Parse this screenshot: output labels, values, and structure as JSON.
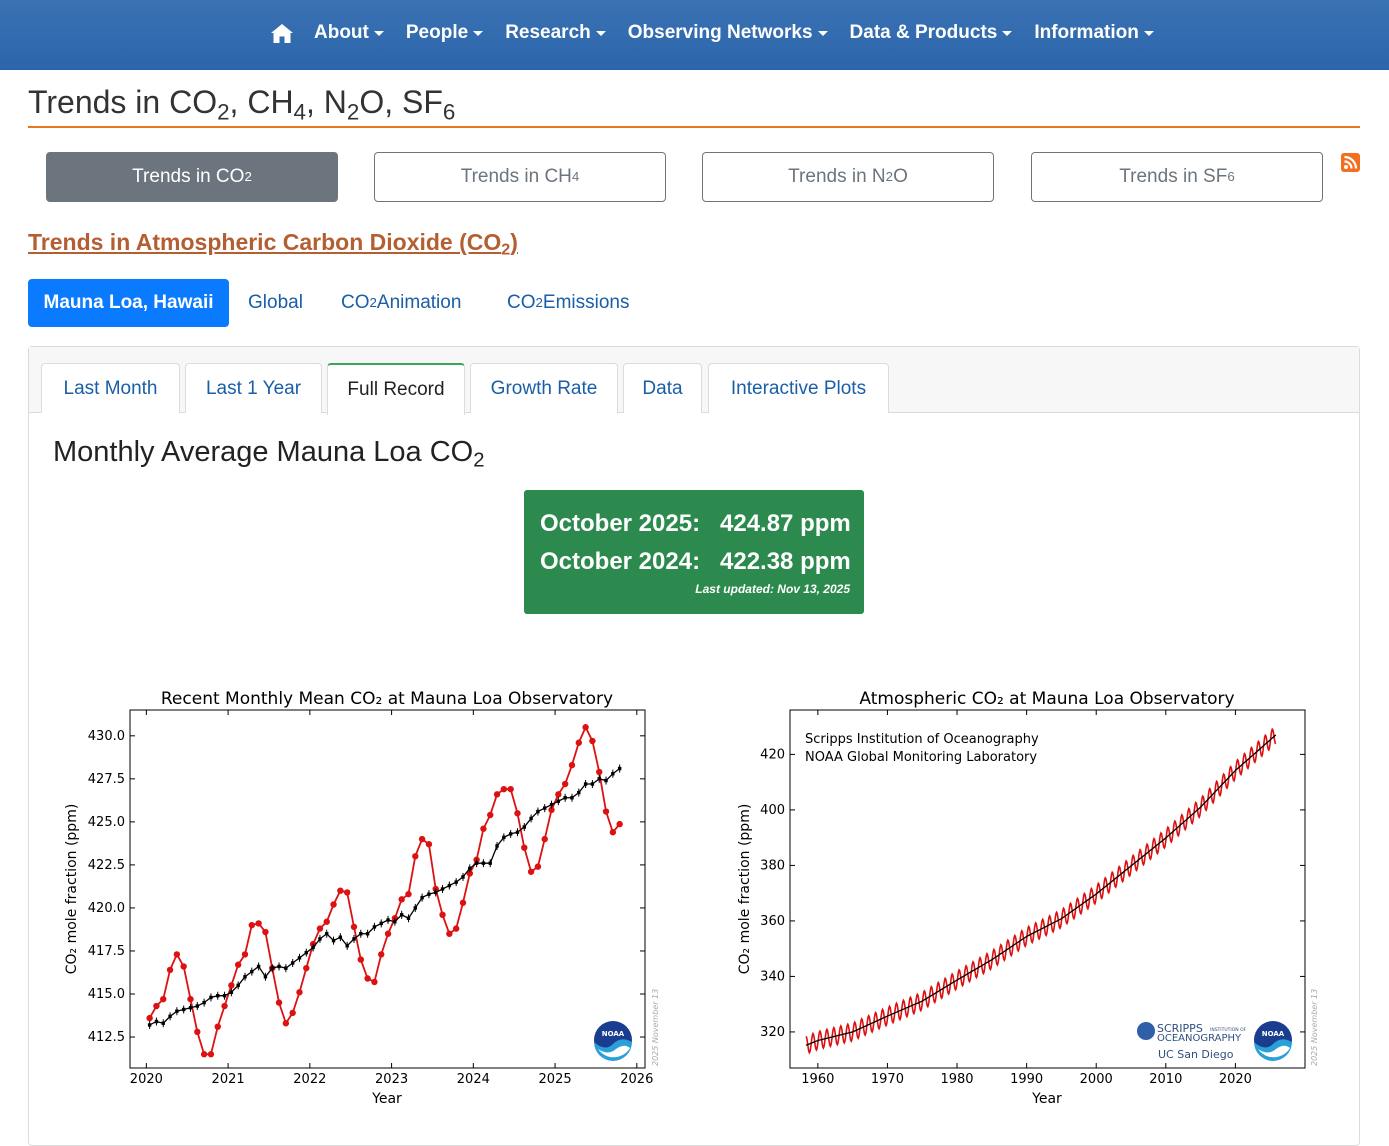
{
  "nav": {
    "items": [
      "About",
      "People",
      "Research",
      "Observing Networks",
      "Data & Products",
      "Information"
    ]
  },
  "page": {
    "title_parts": [
      "Trends in CO",
      "2",
      ", CH",
      "4",
      ", N",
      "2",
      "O, SF",
      "6"
    ]
  },
  "gas_buttons": [
    {
      "label": "Trends in CO",
      "sub": "2",
      "active": true
    },
    {
      "label": "Trends in CH",
      "sub": "4",
      "active": false
    },
    {
      "label": "Trends in N",
      "sub": "2",
      "suffix": "O",
      "active": false
    },
    {
      "label": "Trends in SF",
      "sub": "6",
      "active": false
    }
  ],
  "section": {
    "heading": "Trends in Atmospheric Carbon Dioxide (CO",
    "sub": "2",
    "suffix": ")"
  },
  "pills": [
    {
      "label": "Mauna Loa, Hawaii",
      "active": true
    },
    {
      "label": "Global",
      "active": false
    },
    {
      "label": "CO",
      "sub": "2",
      "suffix": " Animation",
      "active": false
    },
    {
      "label": "CO",
      "sub": "2",
      "suffix": " Emissions",
      "active": false
    }
  ],
  "tabs": [
    {
      "label": "Last Month",
      "active": false
    },
    {
      "label": "Last 1 Year",
      "active": false
    },
    {
      "label": "Full Record",
      "active": true
    },
    {
      "label": "Growth Rate",
      "active": false
    },
    {
      "label": "Data",
      "active": false
    },
    {
      "label": "Interactive Plots",
      "active": false
    }
  ],
  "chart_heading": {
    "text": "Monthly Average Mauna Loa CO",
    "sub": "2"
  },
  "co2_box": {
    "row1_label": "October 2025:",
    "row1_value": "424.87 ppm",
    "row2_label": "October 2024:",
    "row2_value": "422.38 ppm",
    "updated": "Last updated: Nov 13, 2025",
    "color": "#2d8a4e"
  },
  "colors": {
    "nav": "#2f69ad",
    "accent": "#e87722",
    "link": "#1a5ea8",
    "pill_active": "#0a7bff",
    "monthly": "#dd1111",
    "trend": "#000000"
  },
  "chart_data": [
    {
      "type": "line",
      "title": "Recent Monthly Mean CO₂ at Mauna Loa Observatory",
      "xlabel": "Year",
      "ylabel": "CO₂ mole fraction (ppm)",
      "xlim": [
        2019.8,
        2026.1
      ],
      "ylim": [
        410.7,
        431.5
      ],
      "xticks": [
        2020,
        2021,
        2022,
        2023,
        2024,
        2025,
        2026
      ],
      "yticks": [
        "412.5",
        "415.0",
        "417.5",
        "420.0",
        "422.5",
        "425.0",
        "427.5",
        "430.0"
      ],
      "watermark": "2025 November 13",
      "series": [
        {
          "name": "monthly mean",
          "color": "#dd1111",
          "start": 2020.04,
          "values": [
            413.6,
            414.3,
            414.7,
            416.4,
            417.3,
            416.6,
            414.7,
            412.8,
            411.5,
            411.5,
            413.1,
            414.3,
            415.5,
            416.7,
            417.3,
            419.0,
            419.1,
            418.6,
            416.5,
            414.5,
            413.3,
            413.9,
            415.1,
            416.5,
            417.9,
            418.8,
            419.2,
            420.2,
            421.0,
            420.9,
            418.9,
            417.0,
            415.9,
            415.7,
            417.3,
            418.5,
            419.4,
            420.5,
            420.8,
            423.0,
            424.0,
            423.7,
            421.1,
            419.6,
            418.5,
            418.8,
            420.3,
            422.0,
            422.8,
            424.6,
            425.4,
            426.6,
            426.9,
            426.9,
            425.5,
            423.5,
            422.1,
            422.4,
            424.0,
            425.7,
            426.6,
            427.2,
            428.3,
            429.6,
            430.5,
            429.7,
            427.9,
            425.6,
            424.4,
            424.87
          ]
        },
        {
          "name": "deseasonalized",
          "color": "#000000",
          "start": 2020.04,
          "values": [
            413.2,
            413.4,
            413.3,
            413.7,
            414.0,
            414.1,
            414.2,
            414.3,
            414.5,
            414.8,
            414.9,
            414.9,
            415.1,
            415.5,
            416.0,
            416.3,
            416.6,
            416.0,
            416.5,
            416.6,
            416.5,
            416.8,
            417.1,
            417.4,
            417.7,
            418.2,
            418.5,
            418.1,
            418.3,
            417.8,
            418.2,
            418.5,
            418.5,
            418.9,
            419.1,
            419.3,
            419.2,
            419.6,
            419.4,
            420.0,
            420.6,
            420.8,
            420.9,
            421.1,
            421.3,
            421.5,
            421.8,
            422.3,
            422.6,
            422.6,
            422.6,
            423.6,
            424.1,
            424.3,
            424.4,
            424.7,
            425.2,
            425.6,
            425.8,
            426.0,
            426.2,
            426.4,
            426.4,
            426.7,
            427.2,
            427.2,
            427.5,
            427.4,
            427.8,
            428.1
          ]
        }
      ]
    },
    {
      "type": "line",
      "title": "Atmospheric CO₂ at Mauna Loa Observatory",
      "xlabel": "Year",
      "ylabel": "CO₂ mole fraction (ppm)",
      "xlim": [
        1956,
        2030
      ],
      "ylim": [
        307,
        436
      ],
      "xticks": [
        1960,
        1970,
        1980,
        1990,
        2000,
        2010,
        2020
      ],
      "yticks": [
        320,
        340,
        360,
        380,
        400,
        420
      ],
      "annotations": [
        "Scripps Institution of Oceanography",
        "NOAA Global Monitoring Laboratory"
      ],
      "watermark": "2025 November 13",
      "logo_text": {
        "scripps": "SCRIPPS",
        "oceanography": "OCEANOGRAPHY",
        "institution": "INSTITUTION OF",
        "ucsd": "UC San Diego",
        "noaa": "NOAA"
      },
      "series": [
        {
          "name": "monthly mean",
          "color": "#dd1111",
          "seasonal_amplitude_ppm": 3.2
        },
        {
          "name": "deseasonalized",
          "color": "#000000",
          "x": [
            1958.3,
            1960,
            1965,
            1970,
            1975,
            1980,
            1985,
            1990,
            1995,
            2000,
            2005,
            2010,
            2015,
            2020,
            2025.8
          ],
          "values": [
            315.2,
            316.9,
            320.0,
            325.7,
            331.1,
            338.7,
            346.0,
            354.4,
            360.8,
            369.7,
            379.8,
            389.9,
            401.0,
            414.2,
            427.0
          ]
        }
      ]
    }
  ]
}
